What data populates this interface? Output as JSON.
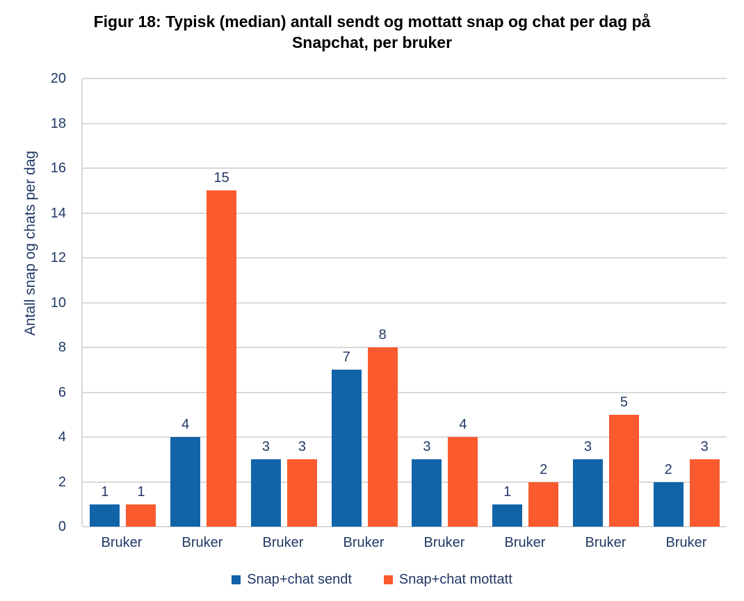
{
  "chart_data": {
    "type": "bar",
    "title": "Figur 18: Typisk (median) antall sendt og mottatt snap og chat per dag på Snapchat, per bruker",
    "ylabel": "Antall snap og chats per dag",
    "xlabel": "",
    "categories": [
      "Bruker",
      "Bruker",
      "Bruker",
      "Bruker",
      "Bruker",
      "Bruker",
      "Bruker",
      "Bruker"
    ],
    "series": [
      {
        "name": "Snap+chat sendt",
        "color": "#1264A9",
        "values": [
          1,
          4,
          3,
          7,
          3,
          1,
          3,
          2
        ]
      },
      {
        "name": "Snap+chat mottatt",
        "color": "#FB5A2E",
        "values": [
          1,
          15,
          3,
          8,
          4,
          2,
          5,
          3
        ]
      }
    ],
    "ylim": [
      0,
      20
    ],
    "yticks": [
      0,
      2,
      4,
      6,
      8,
      10,
      12,
      14,
      16,
      18,
      20
    ],
    "grid": true,
    "data_labels": true,
    "legend_position": "bottom",
    "colors": {
      "sent": "#1264A9",
      "received": "#FB5A2E",
      "axis_text": "#203864",
      "gridline": "#D9D9D9",
      "title_text": "#000000",
      "background": "#FFFFFF"
    }
  }
}
